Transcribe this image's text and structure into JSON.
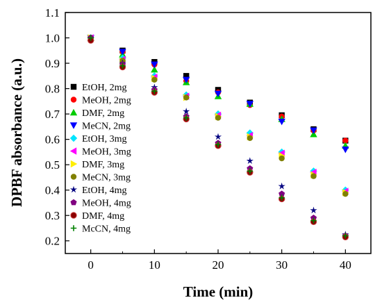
{
  "chart_data": {
    "type": "scatter",
    "xlabel": "Time (min)",
    "ylabel": "DPBF absorbance (a.u.)",
    "xlim": [
      -4,
      44
    ],
    "ylim": [
      0.15,
      1.1
    ],
    "xticks": [
      "0",
      "10",
      "20",
      "30",
      "40"
    ],
    "yticks": [
      "0.2",
      "0.3",
      "0.4",
      "0.5",
      "0.6",
      "0.7",
      "0.8",
      "0.9",
      "1.0",
      "1.1"
    ],
    "legend_position": "left",
    "x": [
      0,
      5,
      10,
      15,
      20,
      25,
      30,
      35,
      40
    ],
    "series": [
      {
        "name": "EtOH,  2mg",
        "marker": "square",
        "color": "#000000",
        "values": [
          1.0,
          0.95,
          0.905,
          0.85,
          0.795,
          0.745,
          0.695,
          0.64,
          0.595
        ]
      },
      {
        "name": "MeOH, 2mg",
        "marker": "circle",
        "color": "#ff0000",
        "values": [
          1.0,
          0.945,
          0.895,
          0.83,
          0.785,
          0.735,
          0.69,
          0.635,
          0.595
        ]
      },
      {
        "name": "DMF,  2mg",
        "marker": "triangle-up",
        "color": "#00cc00",
        "values": [
          1.0,
          0.935,
          0.875,
          0.825,
          0.77,
          0.74,
          0.68,
          0.62,
          0.575
        ]
      },
      {
        "name": "MeCN, 2mg",
        "marker": "triangle-down",
        "color": "#0000ff",
        "values": [
          1.0,
          0.945,
          0.895,
          0.835,
          0.78,
          0.74,
          0.67,
          0.635,
          0.56
        ]
      },
      {
        "name": "EtOH,  3mg",
        "marker": "diamond",
        "color": "#00e5ff",
        "values": [
          1.0,
          0.92,
          0.85,
          0.775,
          0.7,
          0.625,
          0.55,
          0.475,
          0.4
        ]
      },
      {
        "name": "MeOH, 3mg",
        "marker": "triangle-left",
        "color": "#ff00ff",
        "values": [
          1.0,
          0.915,
          0.845,
          0.77,
          0.695,
          0.615,
          0.545,
          0.47,
          0.395
        ]
      },
      {
        "name": "DMF,  3mg",
        "marker": "triangle-right",
        "color": "#ffee00",
        "values": [
          1.0,
          0.91,
          0.84,
          0.765,
          0.69,
          0.61,
          0.535,
          0.46,
          0.39
        ]
      },
      {
        "name": "MeCN, 3mg",
        "marker": "circle",
        "color": "#808000",
        "values": [
          1.0,
          0.91,
          0.835,
          0.765,
          0.685,
          0.605,
          0.525,
          0.455,
          0.385
        ]
      },
      {
        "name": "EtOH,  4mg",
        "marker": "star",
        "color": "#000080",
        "values": [
          1.0,
          0.9,
          0.805,
          0.71,
          0.61,
          0.515,
          0.415,
          0.32,
          0.225
        ]
      },
      {
        "name": "MeOH, 4mg",
        "marker": "pentagon",
        "color": "#800080",
        "values": [
          1.0,
          0.895,
          0.795,
          0.69,
          0.585,
          0.485,
          0.385,
          0.29,
          0.22
        ]
      },
      {
        "name": "DMF,  4mg",
        "marker": "circle-split",
        "color": "#8b0000",
        "values": [
          0.99,
          0.885,
          0.785,
          0.68,
          0.575,
          0.47,
          0.365,
          0.275,
          0.215
        ]
      },
      {
        "name": "McCN, 4mg",
        "marker": "plus",
        "color": "#008000",
        "values": [
          1.0,
          0.89,
          0.79,
          0.685,
          0.58,
          0.475,
          0.37,
          0.28,
          0.22
        ]
      }
    ]
  }
}
